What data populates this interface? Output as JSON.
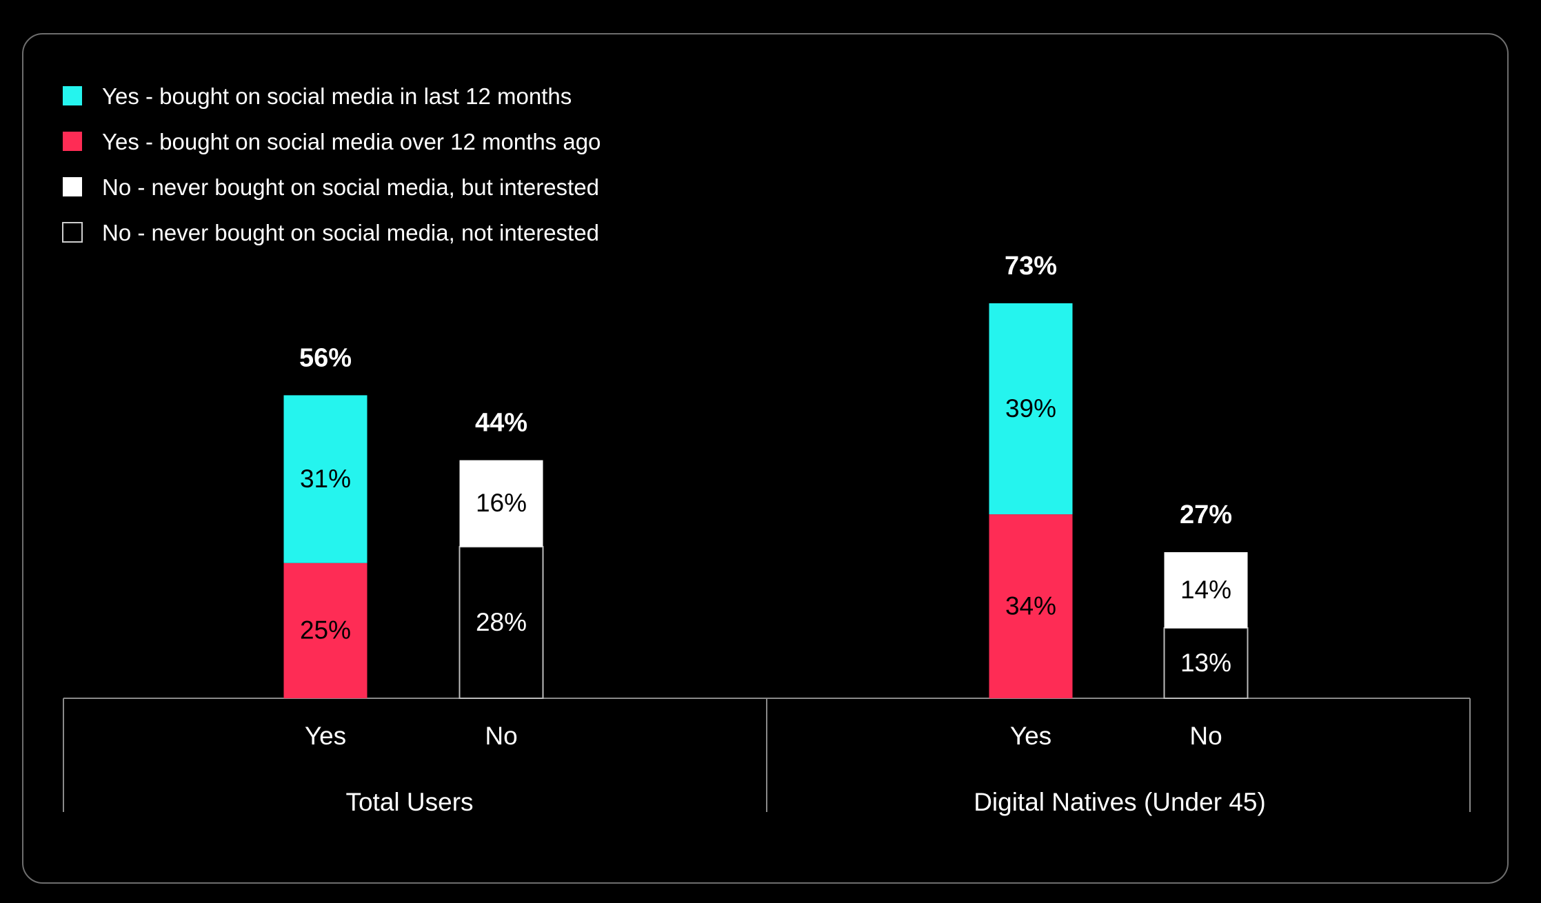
{
  "chart_data": {
    "type": "bar",
    "stacked": true,
    "legend": [
      {
        "key": "recent",
        "label": "Yes - bought on social media in last 12 months",
        "color": "#25f4ee",
        "text_color": "#000000"
      },
      {
        "key": "past",
        "label": "Yes - bought on social media over 12 months ago",
        "color": "#fe2c55",
        "text_color": "#000000"
      },
      {
        "key": "interested",
        "label": "No - never bought on social media, but interested",
        "color": "#ffffff",
        "text_color": "#000000"
      },
      {
        "key": "not_interested",
        "label": "No - never bought on social media, not interested",
        "color": "#000000",
        "text_color": "#ffffff",
        "outline": true
      }
    ],
    "legend_position": "top-left",
    "groups": [
      {
        "label": "Total Users",
        "bars": [
          {
            "category": "Yes",
            "total_label": "56%",
            "segments": [
              {
                "key": "past",
                "value": 25,
                "label": "25%"
              },
              {
                "key": "recent",
                "value": 31,
                "label": "31%"
              }
            ]
          },
          {
            "category": "No",
            "total_label": "44%",
            "segments": [
              {
                "key": "not_interested",
                "value": 28,
                "label": "28%"
              },
              {
                "key": "interested",
                "value": 16,
                "label": "16%"
              }
            ]
          }
        ]
      },
      {
        "label": "Digital Natives (Under 45)",
        "bars": [
          {
            "category": "Yes",
            "total_label": "73%",
            "segments": [
              {
                "key": "past",
                "value": 34,
                "label": "34%"
              },
              {
                "key": "recent",
                "value": 39,
                "label": "39%"
              }
            ]
          },
          {
            "category": "No",
            "total_label": "27%",
            "segments": [
              {
                "key": "not_interested",
                "value": 13,
                "label": "13%"
              },
              {
                "key": "interested",
                "value": 14,
                "label": "14%"
              }
            ]
          }
        ]
      }
    ],
    "ylim": [
      0,
      80
    ],
    "grid": false,
    "background": "#000000",
    "axis_color": "#8a8a8a"
  }
}
